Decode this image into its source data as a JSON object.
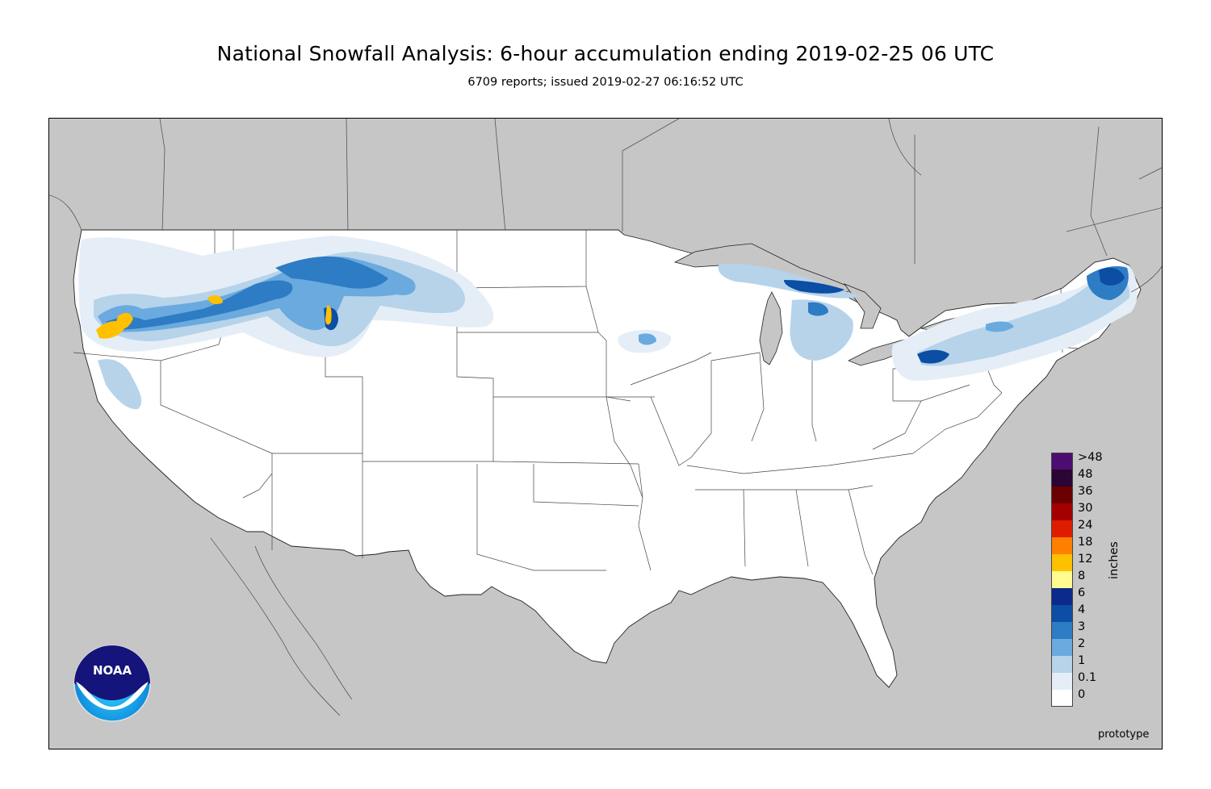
{
  "header": {
    "title": "National Snowfall Analysis: 6-hour accumulation ending 2019-02-25 06 UTC",
    "subtitle": "6709 reports; issued 2019-02-27 06:16:52 UTC"
  },
  "colors": {
    "background_land_outside": "#c6c6c6",
    "contiguous_us": "#ffffff",
    "state_border": "#444444"
  },
  "legend": {
    "units_label": "inches",
    "bins": [
      {
        "label": ">48",
        "color": "#4b0e70"
      },
      {
        "label": "48",
        "color": "#2b0533"
      },
      {
        "label": "36",
        "color": "#6a0000"
      },
      {
        "label": "30",
        "color": "#a50000"
      },
      {
        "label": "24",
        "color": "#de1c00"
      },
      {
        "label": "18",
        "color": "#ff8000"
      },
      {
        "label": "12",
        "color": "#ffc000"
      },
      {
        "label": "8",
        "color": "#fffb8f"
      },
      {
        "label": "6",
        "color": "#0c2a8c"
      },
      {
        "label": "4",
        "color": "#0b4ea3"
      },
      {
        "label": "3",
        "color": "#2d7cc4"
      },
      {
        "label": "2",
        "color": "#6aaade"
      },
      {
        "label": "1",
        "color": "#b6d3ea"
      },
      {
        "label": "0.1",
        "color": "#e5eef7"
      },
      {
        "label": "0",
        "color": "#ffffff"
      }
    ]
  },
  "logo": {
    "icon": "noaa-logo",
    "text": "NOAA"
  },
  "watermark": "prototype"
}
